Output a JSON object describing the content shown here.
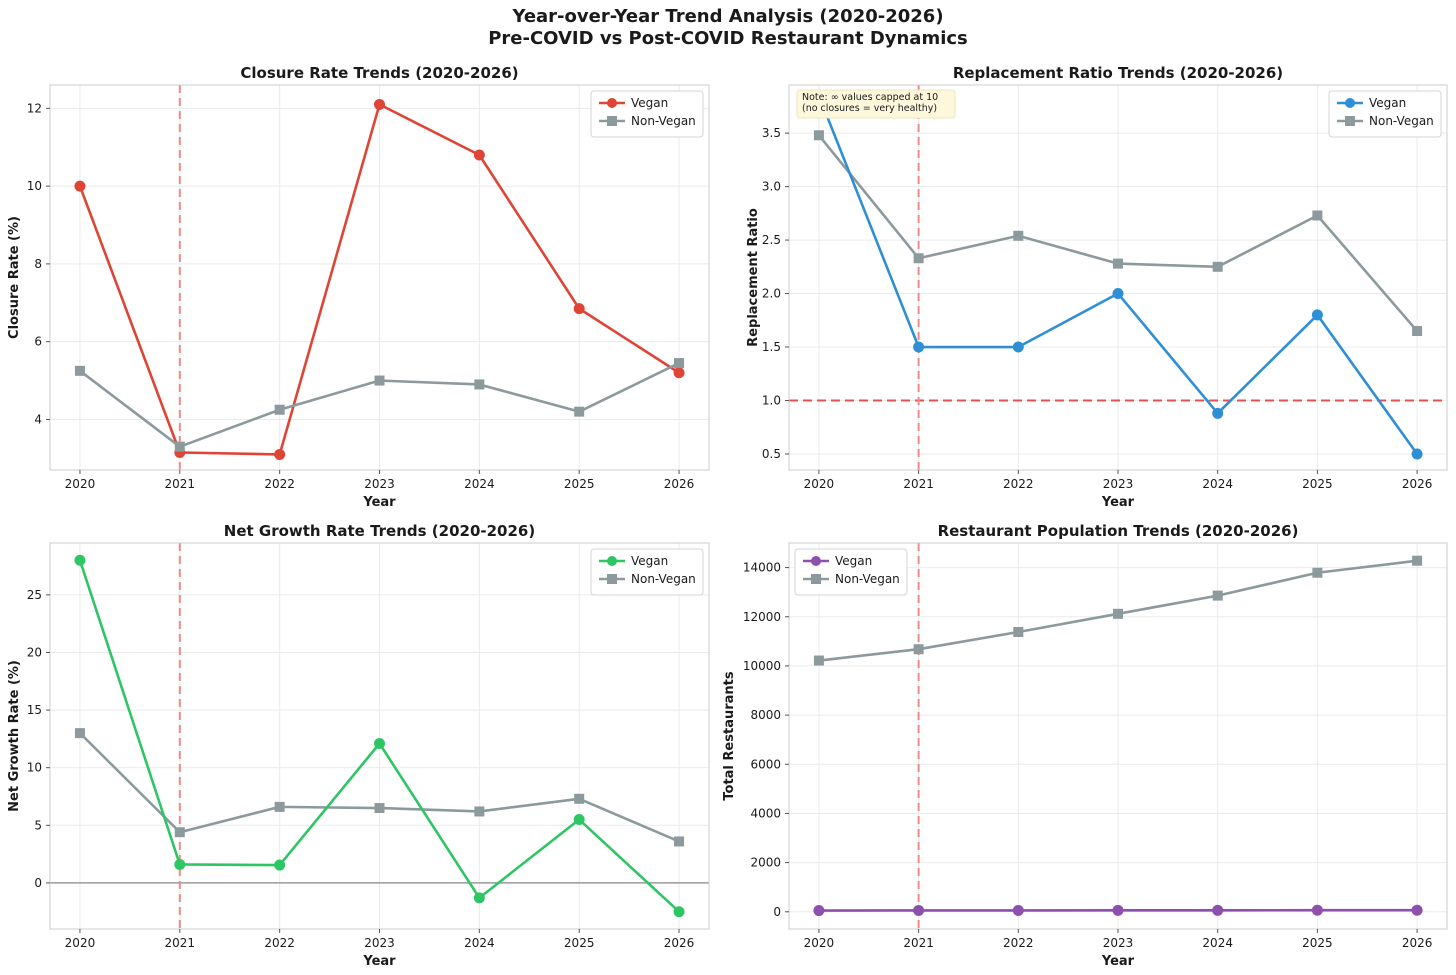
{
  "suptitle": {
    "line1": "Year-over-Year Trend Analysis (2020-2026)",
    "line2": "Pre-COVID vs Post-COVID Restaurant Dynamics"
  },
  "colors": {
    "vegan_closure": "#de4536",
    "vegan_replacement": "#2f8fd5",
    "vegan_growth": "#2ec665",
    "vegan_population": "#8e50ad",
    "non_vegan": "#8c9a9e",
    "covid_line": "#ef8a8a",
    "threshold_line": "#e05252"
  },
  "chart_data": [
    {
      "id": "closure",
      "type": "line",
      "title": "Closure Rate Trends (2020-2026)",
      "xlabel": "Year",
      "ylabel": "Closure Rate (%)",
      "x": [
        2020,
        2021,
        2022,
        2023,
        2024,
        2025,
        2026
      ],
      "xlim": [
        2019.7,
        2026.3
      ],
      "ylim": [
        2.7,
        12.6
      ],
      "yticks": [
        4,
        6,
        8,
        10,
        12
      ],
      "grid": true,
      "legend": "top-right",
      "vline": 2021,
      "series": [
        {
          "name": "Vegan",
          "marker": "circle",
          "color": "#de4536",
          "values": [
            10.0,
            3.15,
            3.1,
            12.1,
            10.8,
            6.85,
            5.2
          ]
        },
        {
          "name": "Non-Vegan",
          "marker": "square",
          "color": "#8c9a9e",
          "values": [
            5.25,
            3.3,
            4.25,
            5.0,
            4.9,
            4.2,
            5.45
          ]
        }
      ]
    },
    {
      "id": "replacement",
      "type": "line",
      "title": "Replacement Ratio Trends (2020-2026)",
      "xlabel": "Year",
      "ylabel": "Replacement Ratio",
      "x": [
        2020,
        2021,
        2022,
        2023,
        2024,
        2025,
        2026
      ],
      "xlim": [
        2019.7,
        2026.3
      ],
      "ylim": [
        0.35,
        3.95
      ],
      "yticks": [
        0.5,
        1.0,
        1.5,
        2.0,
        2.5,
        3.0,
        3.5
      ],
      "ytick_labels": [
        "0.5",
        "1.0",
        "1.5",
        "2.0",
        "2.5",
        "3.0",
        "3.5"
      ],
      "grid": true,
      "legend": "top-right",
      "vline": 2021,
      "hline": 1.0,
      "note": [
        "Note: ∞ values capped at 10",
        "(no closures = very healthy)"
      ],
      "series": [
        {
          "name": "Vegan",
          "marker": "circle",
          "color": "#2f8fd5",
          "values": [
            3.85,
            1.5,
            1.5,
            2.0,
            0.88,
            1.8,
            0.5
          ]
        },
        {
          "name": "Non-Vegan",
          "marker": "square",
          "color": "#8c9a9e",
          "values": [
            3.48,
            2.33,
            2.54,
            2.28,
            2.25,
            2.73,
            1.65
          ]
        }
      ]
    },
    {
      "id": "growth",
      "type": "line",
      "title": "Net Growth Rate Trends (2020-2026)",
      "xlabel": "Year",
      "ylabel": "Net Growth Rate (%)",
      "x": [
        2020,
        2021,
        2022,
        2023,
        2024,
        2025,
        2026
      ],
      "xlim": [
        2019.7,
        2026.3
      ],
      "ylim": [
        -4.0,
        29.5
      ],
      "yticks": [
        0,
        5,
        10,
        15,
        20,
        25
      ],
      "grid": true,
      "legend": "top-right",
      "vline": 2021,
      "zeroline": 0,
      "series": [
        {
          "name": "Vegan",
          "marker": "circle",
          "color": "#2ec665",
          "values": [
            28.0,
            1.6,
            1.55,
            12.1,
            -1.3,
            5.5,
            -2.5
          ]
        },
        {
          "name": "Non-Vegan",
          "marker": "square",
          "color": "#8c9a9e",
          "values": [
            13.0,
            4.4,
            6.6,
            6.5,
            6.2,
            7.3,
            3.6
          ]
        }
      ]
    },
    {
      "id": "population",
      "type": "line",
      "title": "Restaurant Population Trends (2020-2026)",
      "xlabel": "Year",
      "ylabel": "Total Restaurants",
      "x": [
        2020,
        2021,
        2022,
        2023,
        2024,
        2025,
        2026
      ],
      "xlim": [
        2019.7,
        2026.3
      ],
      "ylim": [
        -700,
        15000
      ],
      "yticks": [
        0,
        2000,
        4000,
        6000,
        8000,
        10000,
        12000,
        14000
      ],
      "grid": true,
      "legend": "top-left",
      "vline": 2021,
      "series": [
        {
          "name": "Vegan",
          "marker": "circle",
          "color": "#8e50ad",
          "values": [
            50,
            55,
            55,
            60,
            60,
            65,
            65
          ]
        },
        {
          "name": "Non-Vegan",
          "marker": "square",
          "color": "#8c9a9e",
          "values": [
            10220,
            10680,
            11380,
            12120,
            12860,
            13790,
            14280
          ]
        }
      ]
    }
  ]
}
